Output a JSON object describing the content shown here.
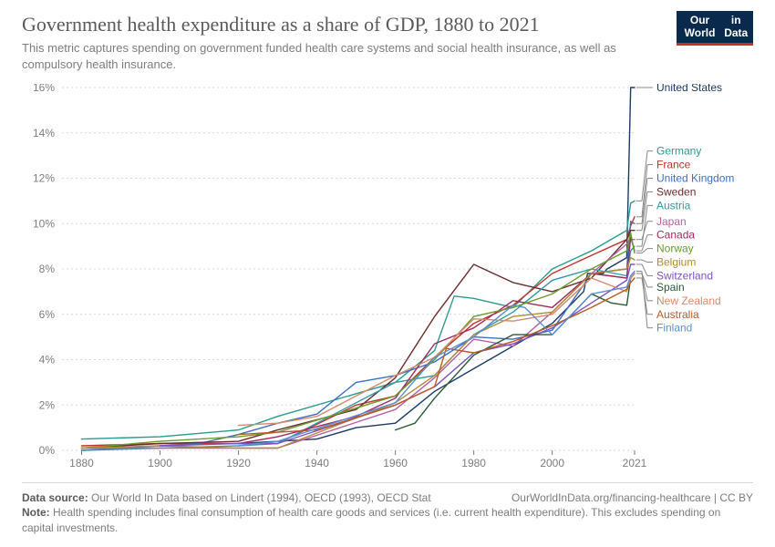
{
  "header": {
    "title": "Government health expenditure as a share of GDP, 1880 to 2021",
    "subtitle": "This metric captures spending on government funded health care systems and social health insurance, as well as compulsory health insurance.",
    "logo_line1": "Our World",
    "logo_line2": "in Data"
  },
  "chart": {
    "type": "line",
    "x_domain": [
      1875,
      2021
    ],
    "y_domain": [
      0,
      16
    ],
    "x_ticks": [
      1880,
      1900,
      1920,
      1940,
      1960,
      1980,
      2000,
      2021
    ],
    "y_ticks": [
      0,
      2,
      4,
      6,
      8,
      10,
      12,
      14,
      16
    ],
    "y_tick_suffix": "%",
    "background_color": "#ffffff",
    "grid_color": "#d9d9d9",
    "grid_dash": "2,3",
    "axis_text_color": "#7d7d7d",
    "axis_fontsize": 12,
    "line_width": 1.4,
    "label_fontsize": 12,
    "series": [
      {
        "name": "United States",
        "color": "#1b3a66",
        "label_y": 16.0,
        "points": [
          [
            1920,
            0.3
          ],
          [
            1930,
            0.4
          ],
          [
            1940,
            0.5
          ],
          [
            1950,
            1.0
          ],
          [
            1960,
            1.2
          ],
          [
            1970,
            2.6
          ],
          [
            1980,
            3.6
          ],
          [
            1990,
            4.6
          ],
          [
            2000,
            5.6
          ],
          [
            2008,
            7.0
          ],
          [
            2009,
            7.8
          ],
          [
            2010,
            7.8
          ],
          [
            2013,
            7.8
          ],
          [
            2014,
            8.0
          ],
          [
            2019,
            8.5
          ],
          [
            2020,
            16.0
          ],
          [
            2021,
            16.0
          ]
        ]
      },
      {
        "name": "Germany",
        "color": "#2a9c8c",
        "label_y": 13.2,
        "points": [
          [
            1880,
            0.5
          ],
          [
            1900,
            0.6
          ],
          [
            1920,
            0.9
          ],
          [
            1930,
            1.5
          ],
          [
            1960,
            3.0
          ],
          [
            1970,
            4.4
          ],
          [
            1975,
            6.8
          ],
          [
            1980,
            6.7
          ],
          [
            1990,
            6.3
          ],
          [
            2000,
            8.0
          ],
          [
            2010,
            8.8
          ],
          [
            2019,
            9.7
          ],
          [
            2020,
            10.9
          ],
          [
            2021,
            11.0
          ]
        ]
      },
      {
        "name": "France",
        "color": "#c1332c",
        "label_y": 12.6,
        "points": [
          [
            1880,
            0.2
          ],
          [
            1900,
            0.3
          ],
          [
            1920,
            0.3
          ],
          [
            1930,
            0.3
          ],
          [
            1950,
            2.0
          ],
          [
            1960,
            2.4
          ],
          [
            1970,
            4.1
          ],
          [
            1980,
            5.6
          ],
          [
            1990,
            6.4
          ],
          [
            2000,
            7.8
          ],
          [
            2010,
            8.6
          ],
          [
            2019,
            9.3
          ],
          [
            2020,
            9.9
          ],
          [
            2021,
            10.3
          ]
        ]
      },
      {
        "name": "United Kingdom",
        "color": "#3d6fc4",
        "label_y": 12.0,
        "points": [
          [
            1880,
            0.0
          ],
          [
            1900,
            0.2
          ],
          [
            1910,
            0.3
          ],
          [
            1920,
            0.7
          ],
          [
            1930,
            1.2
          ],
          [
            1940,
            1.6
          ],
          [
            1950,
            3.0
          ],
          [
            1960,
            3.3
          ],
          [
            1970,
            3.9
          ],
          [
            1980,
            5.0
          ],
          [
            1990,
            4.9
          ],
          [
            2000,
            5.3
          ],
          [
            2010,
            7.8
          ],
          [
            2019,
            8.0
          ],
          [
            2020,
            10.1
          ],
          [
            2021,
            10.0
          ]
        ]
      },
      {
        "name": "Sweden",
        "color": "#6b2c2c",
        "label_y": 11.4,
        "points": [
          [
            1880,
            0.1
          ],
          [
            1900,
            0.3
          ],
          [
            1920,
            0.4
          ],
          [
            1930,
            0.9
          ],
          [
            1950,
            1.8
          ],
          [
            1960,
            3.2
          ],
          [
            1970,
            5.9
          ],
          [
            1980,
            8.2
          ],
          [
            1990,
            7.4
          ],
          [
            2000,
            7.0
          ],
          [
            2010,
            7.6
          ],
          [
            2019,
            9.3
          ],
          [
            2020,
            9.7
          ],
          [
            2021,
            9.7
          ]
        ]
      },
      {
        "name": "Austria",
        "color": "#2f9aa8",
        "label_y": 10.8,
        "points": [
          [
            1880,
            0.0
          ],
          [
            1900,
            0.1
          ],
          [
            1920,
            0.2
          ],
          [
            1930,
            0.3
          ],
          [
            1960,
            3.0
          ],
          [
            1970,
            3.3
          ],
          [
            1980,
            5.1
          ],
          [
            1990,
            6.1
          ],
          [
            2000,
            7.5
          ],
          [
            2010,
            8.0
          ],
          [
            2019,
            7.7
          ],
          [
            2020,
            8.8
          ],
          [
            2021,
            9.0
          ]
        ]
      },
      {
        "name": "Japan",
        "color": "#b85fa6",
        "label_y": 10.1,
        "points": [
          [
            1880,
            0.1
          ],
          [
            1900,
            0.1
          ],
          [
            1920,
            0.1
          ],
          [
            1930,
            0.1
          ],
          [
            1960,
            1.8
          ],
          [
            1970,
            3.2
          ],
          [
            1980,
            4.9
          ],
          [
            1990,
            4.6
          ],
          [
            2000,
            6.1
          ],
          [
            2010,
            7.8
          ],
          [
            2019,
            9.1
          ],
          [
            2020,
            9.3
          ],
          [
            2021,
            9.3
          ]
        ]
      },
      {
        "name": "Canada",
        "color": "#a02a5e",
        "label_y": 9.5,
        "points": [
          [
            1920,
            0.3
          ],
          [
            1930,
            0.6
          ],
          [
            1950,
            1.5
          ],
          [
            1960,
            2.3
          ],
          [
            1970,
            4.7
          ],
          [
            1980,
            5.4
          ],
          [
            1990,
            6.6
          ],
          [
            2000,
            6.3
          ],
          [
            2010,
            7.8
          ],
          [
            2019,
            7.6
          ],
          [
            2020,
            9.4
          ],
          [
            2021,
            8.8
          ]
        ]
      },
      {
        "name": "Norway",
        "color": "#6a9b2f",
        "label_y": 8.9,
        "points": [
          [
            1880,
            0.1
          ],
          [
            1900,
            0.4
          ],
          [
            1920,
            0.6
          ],
          [
            1930,
            0.8
          ],
          [
            1960,
            2.4
          ],
          [
            1970,
            4.0
          ],
          [
            1980,
            5.9
          ],
          [
            1990,
            6.3
          ],
          [
            2000,
            6.9
          ],
          [
            2010,
            8.0
          ],
          [
            2019,
            8.8
          ],
          [
            2020,
            9.6
          ],
          [
            2021,
            8.7
          ]
        ]
      },
      {
        "name": "Belgium",
        "color": "#b08a35",
        "label_y": 8.3,
        "points": [
          [
            1880,
            0.1
          ],
          [
            1900,
            0.2
          ],
          [
            1920,
            0.1
          ],
          [
            1930,
            0.1
          ],
          [
            1960,
            2.1
          ],
          [
            1970,
            3.3
          ],
          [
            1980,
            5.1
          ],
          [
            1990,
            5.9
          ],
          [
            2000,
            6.1
          ],
          [
            2010,
            7.8
          ],
          [
            2019,
            8.0
          ],
          [
            2020,
            8.5
          ],
          [
            2021,
            8.4
          ]
        ]
      },
      {
        "name": "Switzerland",
        "color": "#7c52c4",
        "label_y": 7.7,
        "points": [
          [
            1900,
            0.2
          ],
          [
            1920,
            0.3
          ],
          [
            1930,
            0.3
          ],
          [
            1960,
            2.0
          ],
          [
            1970,
            2.8
          ],
          [
            1980,
            4.3
          ],
          [
            1990,
            4.7
          ],
          [
            2000,
            5.4
          ],
          [
            2010,
            6.5
          ],
          [
            2019,
            7.5
          ],
          [
            2020,
            8.2
          ],
          [
            2021,
            8.2
          ]
        ]
      },
      {
        "name": "Spain",
        "color": "#2a5a36",
        "label_y": 7.2,
        "points": [
          [
            1960,
            0.9
          ],
          [
            1965,
            1.2
          ],
          [
            1970,
            2.3
          ],
          [
            1980,
            4.2
          ],
          [
            1990,
            5.1
          ],
          [
            2000,
            5.1
          ],
          [
            2010,
            6.9
          ],
          [
            2015,
            6.5
          ],
          [
            2019,
            6.4
          ],
          [
            2020,
            7.6
          ],
          [
            2021,
            7.8
          ]
        ]
      },
      {
        "name": "New Zealand",
        "color": "#d68a6c",
        "label_y": 6.6,
        "points": [
          [
            1920,
            1.1
          ],
          [
            1930,
            1.2
          ],
          [
            1940,
            1.5
          ],
          [
            1960,
            3.3
          ],
          [
            1970,
            4.1
          ],
          [
            1980,
            5.8
          ],
          [
            1990,
            5.7
          ],
          [
            2000,
            6.0
          ],
          [
            2010,
            7.6
          ],
          [
            2019,
            7.0
          ],
          [
            2020,
            7.6
          ],
          [
            2021,
            7.8
          ]
        ]
      },
      {
        "name": "Australia",
        "color": "#b65a22",
        "label_y": 6.0,
        "points": [
          [
            1920,
            0.7
          ],
          [
            1930,
            0.8
          ],
          [
            1940,
            0.9
          ],
          [
            1960,
            2.0
          ],
          [
            1970,
            2.8
          ],
          [
            1973,
            4.5
          ],
          [
            1980,
            4.3
          ],
          [
            1990,
            4.8
          ],
          [
            2000,
            5.5
          ],
          [
            2010,
            6.3
          ],
          [
            2019,
            7.1
          ],
          [
            2020,
            7.4
          ],
          [
            2021,
            7.6
          ]
        ]
      },
      {
        "name": "Finland",
        "color": "#5a8fd6",
        "label_y": 5.4,
        "points": [
          [
            1920,
            0.2
          ],
          [
            1930,
            0.4
          ],
          [
            1960,
            2.1
          ],
          [
            1970,
            4.1
          ],
          [
            1980,
            5.0
          ],
          [
            1990,
            6.4
          ],
          [
            1993,
            6.3
          ],
          [
            2000,
            5.1
          ],
          [
            2010,
            6.9
          ],
          [
            2019,
            7.2
          ],
          [
            2020,
            7.7
          ],
          [
            2021,
            7.9
          ]
        ]
      }
    ],
    "end_tick_gap": 8,
    "end_tick_color": "#888888",
    "label_leader_lines": true
  },
  "footer": {
    "source_label": "Data source:",
    "source_text": "Our World In Data based on Lindert (1994), OECD (1993), OECD Stat",
    "link_text": "OurWorldInData.org/financing-healthcare | CC BY",
    "note_label": "Note:",
    "note_text": "Health spending includes final consumption of health care goods and services (i.e. current health expenditure). This excludes spending on capital investments."
  }
}
